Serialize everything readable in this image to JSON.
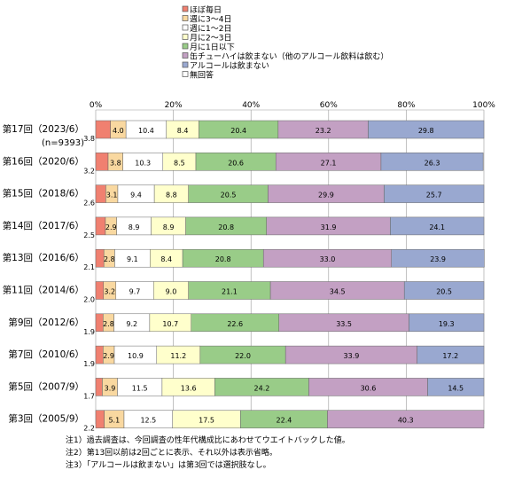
{
  "chart_data": {
    "type": "bar",
    "stacked": "100%",
    "orientation": "horizontal",
    "legend": [
      {
        "label": "ほぼ毎日",
        "color": "#F08070"
      },
      {
        "label": "週に3～4日",
        "color": "#F9D8A0"
      },
      {
        "label": "週に1～2日",
        "color": "#FFFFFF"
      },
      {
        "label": "月に2～3日",
        "color": "#FFFFCC"
      },
      {
        "label": "月に1日以下",
        "color": "#99CC88"
      },
      {
        "label": "缶チューハイは飲まない（他のアルコール飲料は飲む）",
        "color": "#C3A0C3"
      },
      {
        "label": "アルコールは飲まない",
        "color": "#99A8D0"
      },
      {
        "label": "無回答",
        "color": "#FFFFFF"
      }
    ],
    "x_ticks": [
      "0%",
      "20%",
      "40%",
      "60%",
      "80%",
      "100%"
    ],
    "xlim": [
      0,
      100
    ],
    "categories": [
      "第17回（2023/6）",
      "第16回（2020/6）",
      "第15回（2018/6）",
      "第14回（2017/6）",
      "第13回（2016/6）",
      "第11回（2014/6）",
      "第9回（2012/6）",
      "第7回（2010/6）",
      "第5回（2007/9）",
      "第3回（2005/9）"
    ],
    "n_label": "(n=9393)",
    "side_labels": [
      "3.8",
      "3.2",
      "2.6",
      "2.5",
      "2.1",
      "2.0",
      "1.9",
      "1.9",
      "1.7",
      "2.2"
    ],
    "values": [
      [
        3.8,
        4.0,
        10.4,
        8.4,
        20.4,
        23.2,
        29.8,
        0.0
      ],
      [
        3.2,
        3.8,
        10.3,
        8.5,
        20.6,
        27.1,
        26.3,
        0.0
      ],
      [
        2.6,
        3.1,
        9.4,
        8.8,
        20.5,
        29.9,
        25.7,
        0.0
      ],
      [
        2.5,
        2.9,
        8.9,
        8.9,
        20.8,
        31.9,
        24.1,
        0.0
      ],
      [
        2.1,
        2.8,
        9.1,
        8.4,
        20.8,
        33.0,
        23.9,
        0.0
      ],
      [
        2.0,
        3.2,
        9.7,
        9.0,
        21.1,
        34.5,
        20.5,
        0.0
      ],
      [
        1.9,
        2.8,
        9.2,
        10.7,
        22.6,
        33.5,
        19.3,
        0.0
      ],
      [
        1.9,
        2.9,
        10.9,
        11.2,
        22.0,
        33.9,
        17.2,
        0.0
      ],
      [
        1.7,
        3.9,
        11.5,
        13.6,
        24.2,
        30.6,
        14.5,
        0.0
      ],
      [
        2.2,
        5.1,
        12.5,
        17.5,
        22.4,
        40.3,
        0.0,
        0.0
      ]
    ],
    "data_labels": [
      [
        "",
        "4.0",
        "10.4",
        "8.4",
        "20.4",
        "23.2",
        "29.8",
        ""
      ],
      [
        "",
        "3.8",
        "10.3",
        "8.5",
        "20.6",
        "27.1",
        "26.3",
        ""
      ],
      [
        "",
        "3.1",
        "9.4",
        "8.8",
        "20.5",
        "29.9",
        "25.7",
        ""
      ],
      [
        "",
        "2.9",
        "8.9",
        "8.9",
        "20.8",
        "31.9",
        "24.1",
        ""
      ],
      [
        "",
        "2.8",
        "9.1",
        "8.4",
        "20.8",
        "33.0",
        "23.9",
        ""
      ],
      [
        "",
        "3.2",
        "9.7",
        "9.0",
        "21.1",
        "34.5",
        "20.5",
        ""
      ],
      [
        "",
        "2.8",
        "9.2",
        "10.7",
        "22.6",
        "33.5",
        "19.3",
        ""
      ],
      [
        "",
        "2.9",
        "10.9",
        "11.2",
        "22.0",
        "33.9",
        "17.2",
        ""
      ],
      [
        "",
        "3.9",
        "11.5",
        "13.6",
        "24.2",
        "30.6",
        "14.5",
        ""
      ],
      [
        "",
        "5.1",
        "12.5",
        "17.5",
        "22.4",
        "40.3",
        "",
        ""
      ]
    ],
    "grid": true
  },
  "notes": [
    "注1）過去調査は、今回調査の性年代構成比にあわせてウエイトバックした値。",
    "注2）第13回以前は2回ごとに表示、それ以外は表示省略。",
    "注3）「アルコールは飲まない」は第3回では選択肢なし。"
  ]
}
